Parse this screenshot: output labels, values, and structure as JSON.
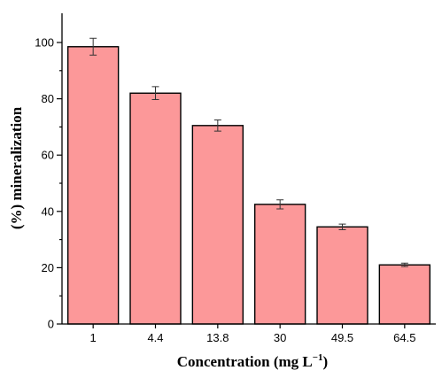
{
  "chart_data": {
    "type": "bar",
    "categories": [
      "1",
      "4.4",
      "13.8",
      "30",
      "49.5",
      "64.5"
    ],
    "values": [
      98.5,
      82.0,
      70.5,
      42.5,
      34.5,
      21.0
    ],
    "errors": [
      3.0,
      2.3,
      2.0,
      1.6,
      1.0,
      0.6
    ],
    "xlabel_main": "Concentration (mg L",
    "xlabel_sup": "−1",
    "xlabel_end": ")",
    "ylabel": "(%) mineralization",
    "ylim": [
      0,
      110
    ],
    "yticks": [
      "0",
      "20",
      "40",
      "60",
      "80",
      "100"
    ],
    "ytick_values": [
      0,
      20,
      40,
      60,
      80,
      100
    ],
    "bar_color": "#fc9899",
    "grid": false,
    "legend": "none"
  }
}
